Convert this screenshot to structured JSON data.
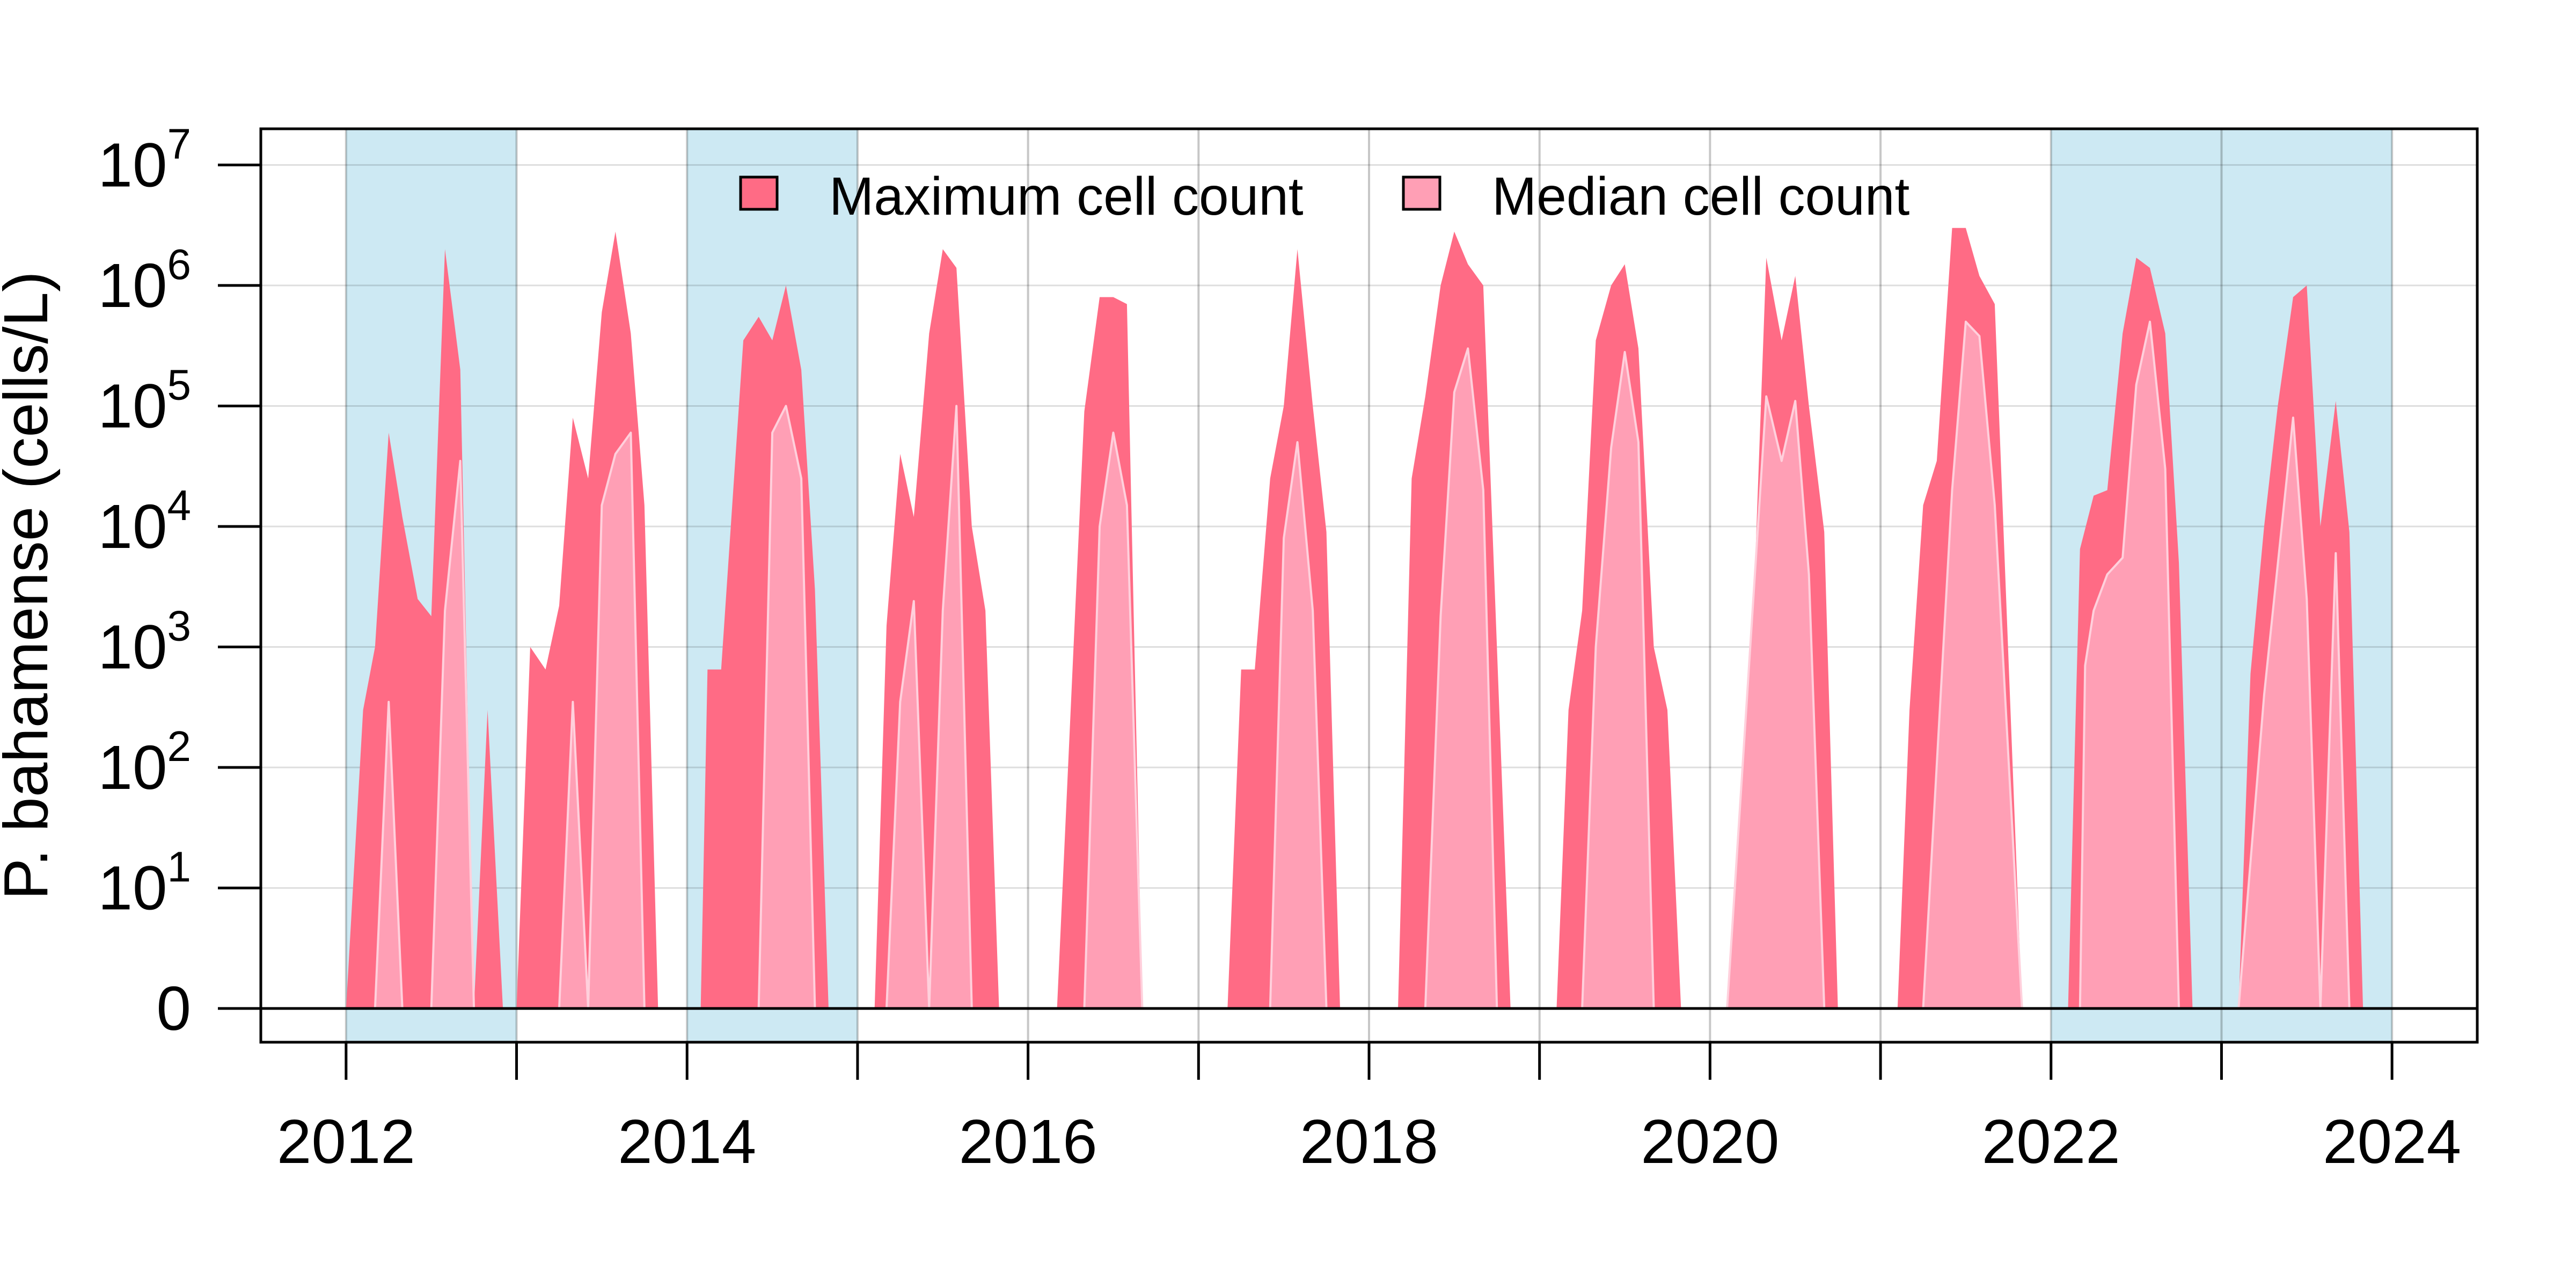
{
  "chart_data": {
    "type": "area",
    "title": "",
    "xlabel": "",
    "ylabel": "P. bahamense (cells/L)",
    "x_unit": "year",
    "y_scale": "log10 with zero baseline",
    "xlim": [
      2011.5,
      2024.5
    ],
    "ylim_log10": [
      -0.28,
      7.3
    ],
    "x_ticks": [
      2012,
      2013,
      2014,
      2015,
      2016,
      2017,
      2018,
      2019,
      2020,
      2021,
      2022,
      2023,
      2024
    ],
    "x_tick_labels": [
      "2012",
      "",
      "2014",
      "",
      "2016",
      "",
      "2018",
      "",
      "2020",
      "",
      "2022",
      "",
      "2024"
    ],
    "y_ticks": [
      {
        "base": "0",
        "exp": ""
      },
      {
        "base": "10",
        "exp": "1"
      },
      {
        "base": "10",
        "exp": "2"
      },
      {
        "base": "10",
        "exp": "3"
      },
      {
        "base": "10",
        "exp": "4"
      },
      {
        "base": "10",
        "exp": "5"
      },
      {
        "base": "10",
        "exp": "6"
      },
      {
        "base": "10",
        "exp": "7"
      }
    ],
    "grid": true,
    "legend_position": "top-center",
    "shaded_years": [
      [
        2012,
        2013
      ],
      [
        2014,
        2015
      ],
      [
        2022,
        2023
      ],
      [
        2023,
        2024
      ]
    ],
    "series": [
      {
        "name": "Maximum cell count",
        "color": "#ff6b85",
        "points": [
          [
            2012.0,
            0
          ],
          [
            2012.1,
            300
          ],
          [
            2012.17,
            1000
          ],
          [
            2012.25,
            60000
          ],
          [
            2012.33,
            12000
          ],
          [
            2012.42,
            2500
          ],
          [
            2012.5,
            1800
          ],
          [
            2012.58,
            2000000
          ],
          [
            2012.67,
            200000
          ],
          [
            2012.75,
            0
          ],
          [
            2012.83,
            300
          ],
          [
            2012.92,
            0
          ],
          [
            2013.0,
            0
          ],
          [
            2013.08,
            1000
          ],
          [
            2013.17,
            650
          ],
          [
            2013.25,
            2200
          ],
          [
            2013.33,
            80000
          ],
          [
            2013.42,
            25000
          ],
          [
            2013.5,
            600000
          ],
          [
            2013.58,
            2800000
          ],
          [
            2013.67,
            400000
          ],
          [
            2013.75,
            15000
          ],
          [
            2013.83,
            0
          ],
          [
            2014.08,
            0
          ],
          [
            2014.12,
            650
          ],
          [
            2014.2,
            650
          ],
          [
            2014.33,
            350000
          ],
          [
            2014.42,
            550000
          ],
          [
            2014.5,
            350000
          ],
          [
            2014.58,
            1000000
          ],
          [
            2014.67,
            200000
          ],
          [
            2014.75,
            3000
          ],
          [
            2014.83,
            0
          ],
          [
            2015.1,
            0
          ],
          [
            2015.17,
            1500
          ],
          [
            2015.25,
            40000
          ],
          [
            2015.33,
            12000
          ],
          [
            2015.42,
            400000
          ],
          [
            2015.5,
            2000000
          ],
          [
            2015.58,
            1400000
          ],
          [
            2015.67,
            10000
          ],
          [
            2015.75,
            2000
          ],
          [
            2015.83,
            0
          ],
          [
            2016.17,
            0
          ],
          [
            2016.33,
            90000
          ],
          [
            2016.42,
            800000
          ],
          [
            2016.5,
            800000
          ],
          [
            2016.58,
            700000
          ],
          [
            2016.67,
            0
          ],
          [
            2017.17,
            0
          ],
          [
            2017.25,
            650
          ],
          [
            2017.33,
            650
          ],
          [
            2017.42,
            25000
          ],
          [
            2017.5,
            100000
          ],
          [
            2017.58,
            2000000
          ],
          [
            2017.67,
            100000
          ],
          [
            2017.75,
            9000
          ],
          [
            2017.83,
            0
          ],
          [
            2018.17,
            0
          ],
          [
            2018.25,
            25000
          ],
          [
            2018.33,
            120000
          ],
          [
            2018.42,
            1000000
          ],
          [
            2018.5,
            2800000
          ],
          [
            2018.58,
            1500000
          ],
          [
            2018.67,
            1000000
          ],
          [
            2018.83,
            0
          ],
          [
            2019.1,
            0
          ],
          [
            2019.17,
            300
          ],
          [
            2019.25,
            2000
          ],
          [
            2019.33,
            350000
          ],
          [
            2019.42,
            1000000
          ],
          [
            2019.5,
            1500000
          ],
          [
            2019.58,
            300000
          ],
          [
            2019.67,
            1000
          ],
          [
            2019.75,
            300
          ],
          [
            2019.83,
            0
          ],
          [
            2020.17,
            0
          ],
          [
            2020.33,
            1700000
          ],
          [
            2020.42,
            350000
          ],
          [
            2020.5,
            1200000
          ],
          [
            2020.58,
            100000
          ],
          [
            2020.67,
            9000
          ],
          [
            2020.75,
            0
          ],
          [
            2021.1,
            0
          ],
          [
            2021.17,
            300
          ],
          [
            2021.25,
            15000
          ],
          [
            2021.33,
            35000
          ],
          [
            2021.42,
            3000000
          ],
          [
            2021.5,
            3000000
          ],
          [
            2021.58,
            1200000
          ],
          [
            2021.67,
            700000
          ],
          [
            2021.83,
            0
          ],
          [
            2022.1,
            0
          ],
          [
            2022.17,
            6500
          ],
          [
            2022.25,
            18000
          ],
          [
            2022.33,
            20000
          ],
          [
            2022.42,
            400000
          ],
          [
            2022.5,
            1700000
          ],
          [
            2022.58,
            1400000
          ],
          [
            2022.67,
            400000
          ],
          [
            2022.75,
            5000
          ],
          [
            2022.83,
            0
          ],
          [
            2023.1,
            0
          ],
          [
            2023.17,
            600
          ],
          [
            2023.25,
            10000
          ],
          [
            2023.33,
            100000
          ],
          [
            2023.42,
            800000
          ],
          [
            2023.5,
            1000000
          ],
          [
            2023.58,
            10000
          ],
          [
            2023.67,
            110000
          ],
          [
            2023.75,
            9000
          ],
          [
            2023.83,
            0
          ]
        ]
      },
      {
        "name": "Median cell count",
        "color": "#ff9fb5",
        "points": [
          [
            2012.17,
            0
          ],
          [
            2012.25,
            350
          ],
          [
            2012.33,
            0
          ],
          [
            2012.5,
            0
          ],
          [
            2012.58,
            2000
          ],
          [
            2012.67,
            35000
          ],
          [
            2012.75,
            0
          ],
          [
            2013.25,
            0
          ],
          [
            2013.33,
            350
          ],
          [
            2013.42,
            0
          ],
          [
            2013.5,
            15000
          ],
          [
            2013.58,
            40000
          ],
          [
            2013.67,
            60000
          ],
          [
            2013.75,
            0
          ],
          [
            2014.42,
            0
          ],
          [
            2014.5,
            60000
          ],
          [
            2014.58,
            100000
          ],
          [
            2014.67,
            25000
          ],
          [
            2014.75,
            0
          ],
          [
            2015.17,
            0
          ],
          [
            2015.25,
            350
          ],
          [
            2015.33,
            2400
          ],
          [
            2015.42,
            0
          ],
          [
            2015.5,
            2000
          ],
          [
            2015.58,
            100000
          ],
          [
            2015.67,
            0
          ],
          [
            2016.33,
            0
          ],
          [
            2016.42,
            10000
          ],
          [
            2016.5,
            60000
          ],
          [
            2016.58,
            15000
          ],
          [
            2016.67,
            0
          ],
          [
            2017.42,
            0
          ],
          [
            2017.5,
            8000
          ],
          [
            2017.58,
            50000
          ],
          [
            2017.67,
            2000
          ],
          [
            2017.75,
            0
          ],
          [
            2018.33,
            0
          ],
          [
            2018.42,
            1800
          ],
          [
            2018.5,
            130000
          ],
          [
            2018.58,
            300000
          ],
          [
            2018.67,
            20000
          ],
          [
            2018.75,
            0
          ],
          [
            2019.25,
            0
          ],
          [
            2019.33,
            1000
          ],
          [
            2019.42,
            45000
          ],
          [
            2019.5,
            280000
          ],
          [
            2019.58,
            50000
          ],
          [
            2019.67,
            0
          ],
          [
            2020.1,
            0
          ],
          [
            2020.33,
            120000
          ],
          [
            2020.42,
            35000
          ],
          [
            2020.5,
            110000
          ],
          [
            2020.58,
            4000
          ],
          [
            2020.67,
            0
          ],
          [
            2021.25,
            0
          ],
          [
            2021.42,
            20000
          ],
          [
            2021.5,
            500000
          ],
          [
            2021.58,
            380000
          ],
          [
            2021.67,
            15000
          ],
          [
            2021.83,
            0
          ],
          [
            2022.17,
            0
          ],
          [
            2022.2,
            700
          ],
          [
            2022.25,
            2000
          ],
          [
            2022.33,
            4000
          ],
          [
            2022.42,
            5500
          ],
          [
            2022.5,
            150000
          ],
          [
            2022.58,
            500000
          ],
          [
            2022.67,
            30000
          ],
          [
            2022.75,
            0
          ],
          [
            2023.1,
            0
          ],
          [
            2023.25,
            400
          ],
          [
            2023.42,
            80000
          ],
          [
            2023.5,
            2500
          ],
          [
            2023.58,
            0
          ],
          [
            2023.67,
            6000
          ],
          [
            2023.75,
            0
          ]
        ]
      }
    ]
  }
}
